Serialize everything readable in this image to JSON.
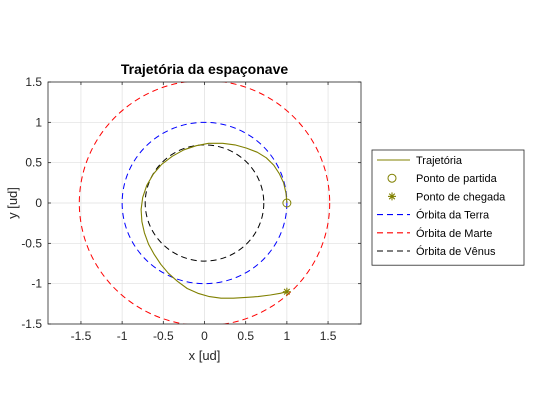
{
  "chart_data": {
    "type": "line",
    "title": "Trajetória da espaçonave",
    "xlabel": "x [ud]",
    "ylabel": "y [ud]",
    "xlim": [
      -1.9,
      1.9
    ],
    "ylim": [
      -1.5,
      1.5
    ],
    "xticks": [
      -1.5,
      -1,
      -0.5,
      0,
      0.5,
      1,
      1.5
    ],
    "xtick_labels": [
      "-1.5",
      "-1",
      "-0.5",
      "0",
      "0.5",
      "1",
      "1.5"
    ],
    "yticks": [
      -1.5,
      -1,
      -0.5,
      0,
      0.5,
      1,
      1.5
    ],
    "ytick_labels": [
      "-1.5",
      "-1",
      "-0.5",
      "0",
      "0.5",
      "1",
      "1.5"
    ],
    "grid": true,
    "equal_aspect": true,
    "legend_position": "right",
    "series": [
      {
        "name": "Trajetória",
        "kind": "line",
        "color": "#808000",
        "x": [
          1.0,
          0.99,
          0.96,
          0.91,
          0.84,
          0.75,
          0.64,
          0.51,
          0.37,
          0.22,
          0.05,
          -0.1,
          -0.25,
          -0.39,
          -0.52,
          -0.62,
          -0.7,
          -0.75,
          -0.77,
          -0.76,
          -0.73,
          -0.68,
          -0.61,
          -0.53,
          -0.44,
          -0.33,
          -0.21,
          -0.08,
          0.06,
          0.2,
          0.35,
          0.5,
          0.65,
          0.8,
          0.92,
          1.0
        ],
        "y": [
          0.0,
          0.12,
          0.25,
          0.36,
          0.47,
          0.56,
          0.63,
          0.68,
          0.72,
          0.74,
          0.74,
          0.71,
          0.66,
          0.58,
          0.48,
          0.36,
          0.22,
          0.07,
          -0.08,
          -0.23,
          -0.37,
          -0.51,
          -0.64,
          -0.76,
          -0.87,
          -0.97,
          -1.06,
          -1.12,
          -1.16,
          -1.18,
          -1.18,
          -1.17,
          -1.16,
          -1.14,
          -1.12,
          -1.1
        ]
      },
      {
        "name": "Ponto de partida",
        "kind": "marker",
        "marker": "circle",
        "color": "#808000",
        "x": [
          1.0
        ],
        "y": [
          0.0
        ]
      },
      {
        "name": "Ponto de chegada",
        "kind": "marker",
        "marker": "asterisk",
        "color": "#808000",
        "x": [
          1.0
        ],
        "y": [
          -1.1
        ]
      },
      {
        "name": "Órbita da Terra",
        "kind": "circle",
        "color": "#0000ff",
        "dash": "dashed",
        "radius": 1.0
      },
      {
        "name": "Órbita de Marte",
        "kind": "circle",
        "color": "#ff0000",
        "dash": "dashed",
        "radius": 1.52
      },
      {
        "name": "Órbita de Vênus",
        "kind": "circle",
        "color": "#000000",
        "dash": "dashed",
        "radius": 0.72
      }
    ]
  }
}
